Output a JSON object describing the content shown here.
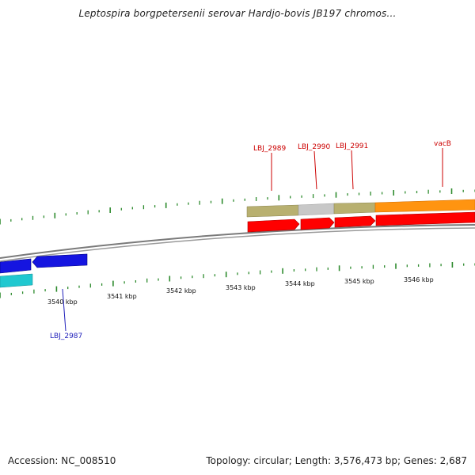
{
  "title": "Leptospira borgpetersenii serovar Hardjo-bovis JB197 chromos...",
  "footer": {
    "accession": "Accession: NC_008510",
    "summary": "Topology: circular; Length: 3,576,473 bp; Genes: 2,687"
  },
  "colors": {
    "backbone": "#7a7a7a",
    "tick": "#2e8b2e",
    "forward_gene": "#ff0000",
    "reverse_gene": "#1515e0",
    "cyan_feature": "#20c8d0",
    "olive_feature": "#b8b070",
    "grey_feature": "#c8c8c8",
    "orange_feature": "#ff9410",
    "forward_label": "#cc0000",
    "reverse_label": "#2020bb"
  },
  "scale_labels": [
    "3540 kbp",
    "3541 kbp",
    "3542 kbp",
    "3543 kbp",
    "3544 kbp",
    "3545 kbp",
    "3546 kbp"
  ],
  "gene_labels": [
    {
      "id": "lbj-2989",
      "text": "LBJ_2989",
      "strand": "forward"
    },
    {
      "id": "lbj-2990",
      "text": "LBJ_2990",
      "strand": "forward"
    },
    {
      "id": "lbj-2991",
      "text": "LBJ_2991",
      "strand": "forward"
    },
    {
      "id": "vacb",
      "text": "vacB",
      "strand": "forward"
    },
    {
      "id": "lbj-2987",
      "text": "LBJ_2987",
      "strand": "reverse"
    }
  ]
}
